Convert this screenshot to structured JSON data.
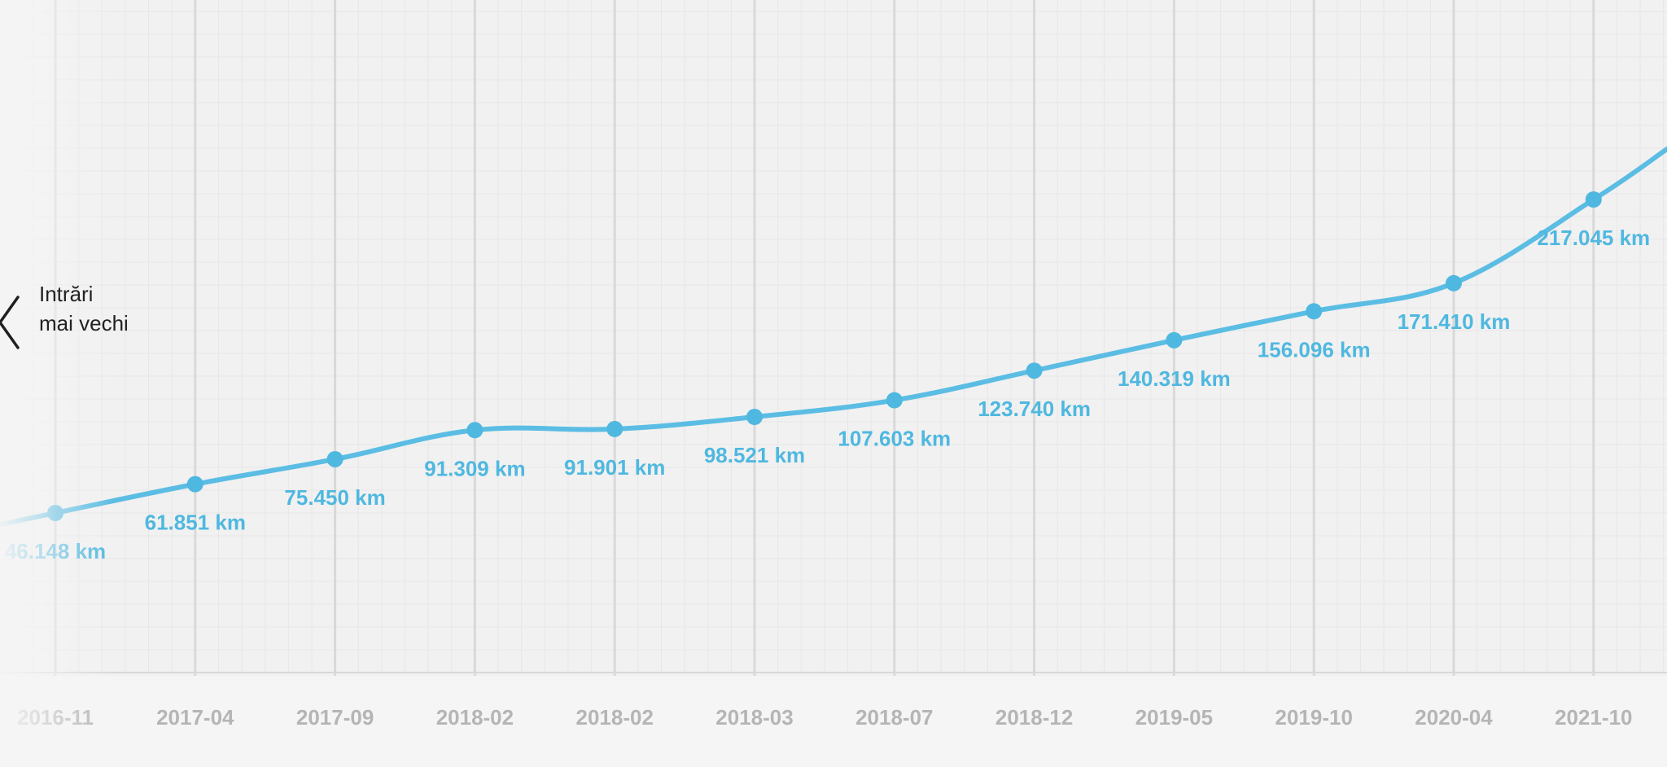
{
  "nav": {
    "older_entries_label": "Intrări mai vechi",
    "chevron_icon": "chevron-left-icon"
  },
  "colors": {
    "line": "#5bbde3",
    "point": "#4fb8e0",
    "label": "#4fb8e0",
    "tick": "#b5b5b5",
    "grid_major": "#dcdcdc",
    "grid_minor": "#e6e6e6",
    "background": "#f1f1f1"
  },
  "chart_data": {
    "type": "line",
    "title": "",
    "xlabel": "",
    "ylabel": "",
    "unit": "km",
    "grid": true,
    "ylim": [
      0,
      250000
    ],
    "points": [
      {
        "x": "2016-11",
        "value": 46148,
        "label": "46.148 km"
      },
      {
        "x": "2017-04",
        "value": 61851,
        "label": "61.851 km"
      },
      {
        "x": "2017-09",
        "value": 75450,
        "label": "75.450 km"
      },
      {
        "x": "2018-02",
        "value": 91309,
        "label": "91.309 km"
      },
      {
        "x": "2018-02",
        "value": 91901,
        "label": "91.901 km"
      },
      {
        "x": "2018-03",
        "value": 98521,
        "label": "98.521 km"
      },
      {
        "x": "2018-07",
        "value": 107603,
        "label": "107.603 km"
      },
      {
        "x": "2018-12",
        "value": 123740,
        "label": "123.740 km"
      },
      {
        "x": "2019-05",
        "value": 140319,
        "label": "140.319 km"
      },
      {
        "x": "2019-10",
        "value": 156096,
        "label": "156.096 km"
      },
      {
        "x": "2020-04",
        "value": 171410,
        "label": "171.410 km"
      },
      {
        "x": "2021-10",
        "value": 217045,
        "label": "217.045 km"
      }
    ]
  }
}
